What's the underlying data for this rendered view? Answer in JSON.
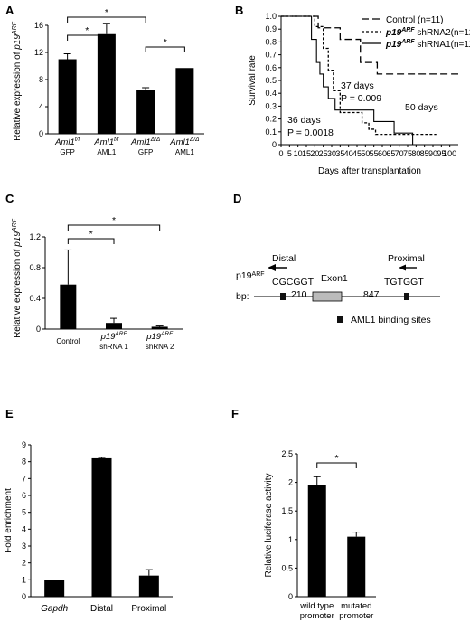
{
  "panels": {
    "A": {
      "letter": "A"
    },
    "B": {
      "letter": "B"
    },
    "C": {
      "letter": "C"
    },
    "D": {
      "letter": "D"
    },
    "E": {
      "letter": "E"
    },
    "F": {
      "letter": "F"
    }
  },
  "chart_data": [
    {
      "panel": "A",
      "type": "bar",
      "ylabel": {
        "prefix": "Relative expression of ",
        "gene": "p19",
        "sup": "ARF"
      },
      "ylim": [
        0,
        16
      ],
      "yticks": [
        "0",
        "4",
        "8",
        "12",
        "16"
      ],
      "categories": [
        {
          "gene": "Aml1",
          "sup": "f/f",
          "sub": "GFP"
        },
        {
          "gene": "Aml1",
          "sup": "f/f",
          "sub": "AML1"
        },
        {
          "gene": "Aml1",
          "sup": "Δ/Δ",
          "sub": "GFP"
        },
        {
          "gene": "Aml1",
          "sup": "Δ/Δ",
          "sub": "AML1"
        }
      ],
      "values": [
        11.0,
        14.7,
        6.4,
        9.7
      ],
      "errors": [
        0.8,
        1.6,
        0.4,
        0.0
      ],
      "significance": [
        {
          "from": 0,
          "to": 1,
          "label": "*"
        },
        {
          "from": 0,
          "to": 2,
          "label": "*"
        },
        {
          "from": 2,
          "to": 3,
          "label": "*"
        }
      ]
    },
    {
      "panel": "B",
      "type": "line",
      "ylabel": "Survival rate",
      "xlabel": "Days after transplantation",
      "xlim": [
        0,
        105
      ],
      "ylim": [
        0,
        1.0
      ],
      "xticks": [
        "0",
        "5",
        "10",
        "15",
        "20",
        "25",
        "30",
        "35",
        "40",
        "45",
        "50",
        "55",
        "60",
        "65",
        "70",
        "75",
        "80",
        "85",
        "90",
        "95",
        "100"
      ],
      "yticks": [
        "0",
        "0.1",
        "0.2",
        "0.3",
        "0.4",
        "0.5",
        "0.6",
        "0.7",
        "0.8",
        "0.9",
        "1.0"
      ],
      "series": [
        {
          "name": "Control (n=11)",
          "style": "longdash",
          "x": [
            0,
            22,
            22,
            35,
            35,
            47,
            47,
            57,
            57,
            105
          ],
          "y": [
            1.0,
            1.0,
            0.91,
            0.91,
            0.82,
            0.82,
            0.64,
            0.64,
            0.55,
            0.55
          ]
        },
        {
          "name": "shRNA2(n=12)",
          "style": "shortdash",
          "x": [
            0,
            20,
            20,
            25,
            25,
            28,
            28,
            31,
            31,
            35,
            35,
            48,
            48,
            52,
            52,
            56,
            56,
            62,
            62,
            92
          ],
          "y": [
            1.0,
            1.0,
            0.92,
            0.92,
            0.75,
            0.75,
            0.58,
            0.58,
            0.42,
            0.42,
            0.25,
            0.25,
            0.17,
            0.17,
            0.12,
            0.12,
            0.08,
            0.08,
            0.08,
            0.08
          ]
        },
        {
          "name": "shRNA1(n=11)",
          "style": "solid",
          "x": [
            0,
            18,
            18,
            21,
            21,
            23,
            23,
            25,
            25,
            28,
            28,
            32,
            32,
            40,
            40,
            55,
            55,
            60,
            60,
            67,
            67,
            78,
            78
          ],
          "y": [
            1.0,
            1.0,
            0.82,
            0.82,
            0.64,
            0.64,
            0.55,
            0.55,
            0.45,
            0.45,
            0.36,
            0.36,
            0.27,
            0.27,
            0.27,
            0.27,
            0.18,
            0.18,
            0.18,
            0.18,
            0.09,
            0.09,
            0.0
          ]
        }
      ],
      "legend": [
        {
          "text": "Control (n=11)",
          "style": "longdash"
        },
        {
          "gene": "p19",
          "sup": "ARF",
          "rest": " shRNA2(n=12)",
          "style": "shortdash"
        },
        {
          "gene": "p19",
          "sup": "ARF",
          "rest": " shRNA1(n=11)",
          "style": "solid"
        }
      ],
      "annotations": {
        "a1": "50 days",
        "a2": "37 days",
        "a3": "P = 0.009",
        "a4": "36 days",
        "a5": "P = 0.0018"
      }
    },
    {
      "panel": "C",
      "type": "bar",
      "ylabel": {
        "prefix": "Relative expression of ",
        "gene": "p19",
        "sup": "ARF"
      },
      "ylim": [
        0,
        1.2
      ],
      "yticks": [
        "0",
        "0.4",
        "0.8",
        "1.2"
      ],
      "categories": [
        {
          "label": "Control"
        },
        {
          "gene": "p19",
          "sup": "ARF",
          "sub": "shRNA 1"
        },
        {
          "gene": "p19",
          "sup": "ARF",
          "sub": "shRNA 2"
        }
      ],
      "values": [
        0.58,
        0.08,
        0.03
      ],
      "errors": [
        0.45,
        0.06,
        0.01
      ],
      "significance": [
        {
          "from": 0,
          "to": 1,
          "label": "*"
        },
        {
          "from": 0,
          "to": 2,
          "label": "*"
        }
      ]
    },
    {
      "panel": "E",
      "type": "bar",
      "ylabel": "Fold enrichment",
      "ylim": [
        0,
        9
      ],
      "yticks": [
        "0",
        "1",
        "2",
        "3",
        "4",
        "5",
        "6",
        "7",
        "8",
        "9"
      ],
      "categories": [
        {
          "label": "Gapdh",
          "italic": true
        },
        {
          "label": "Distal"
        },
        {
          "label": "Proximal"
        }
      ],
      "values": [
        1.0,
        8.2,
        1.25
      ],
      "errors": [
        0.0,
        0.05,
        0.35
      ]
    },
    {
      "panel": "F",
      "type": "bar",
      "ylabel": "Relative luciferase activity",
      "ylim": [
        0,
        2.5
      ],
      "yticks": [
        "0",
        "0.5",
        "1",
        "1.5",
        "2",
        "2.5"
      ],
      "categories": [
        {
          "line1": "wild type",
          "line2": "promoter"
        },
        {
          "line1": "mutated",
          "line2": "promoter"
        }
      ],
      "values": [
        1.95,
        1.05
      ],
      "errors": [
        0.15,
        0.08
      ],
      "significance": [
        {
          "from": 0,
          "to": 1,
          "label": "*"
        }
      ]
    }
  ],
  "diagram": {
    "gene": "p19",
    "sup": "ARF",
    "distal": "Distal",
    "proximal": "Proximal",
    "seq_distal": "CGCGGT",
    "seq_proximal": "TGTGGT",
    "exon": "Exon1",
    "d1": "210",
    "d2": "847",
    "bp": "bp:",
    "legend": "AML1 binding sites"
  }
}
